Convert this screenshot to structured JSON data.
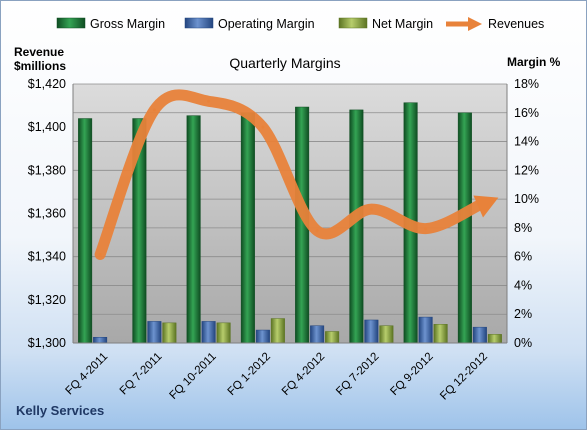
{
  "chart_data": {
    "type": "bar",
    "title": "Quarterly Margins",
    "company": "Kelly Services",
    "left_axis_label_line1": "Revenue",
    "left_axis_label_line2": "$millions",
    "right_axis_label": "Margin %",
    "categories": [
      "FQ 4-2011",
      "FQ 7-2011",
      "FQ 10-2011",
      "FQ 1-2012",
      "FQ 4-2012",
      "FQ 7-2012",
      "FQ 9-2012",
      "FQ 12-2012"
    ],
    "left_axis": {
      "ticks": [
        "$1,300",
        "$1,320",
        "$1,340",
        "$1,360",
        "$1,380",
        "$1,400",
        "$1,420"
      ],
      "min": 1300,
      "max": 1420
    },
    "right_axis": {
      "ticks": [
        "0%",
        "2%",
        "4%",
        "6%",
        "8%",
        "10%",
        "12%",
        "14%",
        "16%",
        "18%"
      ],
      "min": 0,
      "max": 18
    },
    "legend_position": "top",
    "series": [
      {
        "name": "Gross Margin",
        "axis": "right",
        "kind": "bar",
        "color": "#1e7a38",
        "values": [
          15.6,
          15.6,
          15.8,
          16.0,
          16.4,
          16.2,
          16.7,
          16.0
        ]
      },
      {
        "name": "Operating Margin",
        "axis": "right",
        "kind": "bar",
        "color": "#3f67a8",
        "values": [
          0.4,
          1.5,
          1.5,
          0.9,
          1.2,
          1.6,
          1.8,
          1.1
        ]
      },
      {
        "name": "Net Margin",
        "axis": "right",
        "kind": "bar",
        "color": "#8faa3c",
        "values": [
          0.0,
          1.4,
          1.4,
          1.7,
          0.8,
          1.2,
          1.3,
          0.6
        ]
      },
      {
        "name": "Revenues",
        "axis": "left",
        "kind": "line",
        "color": "#e8823a",
        "values": [
          1341,
          1408,
          1412,
          1400,
          1352,
          1362,
          1353,
          1364
        ]
      }
    ]
  }
}
